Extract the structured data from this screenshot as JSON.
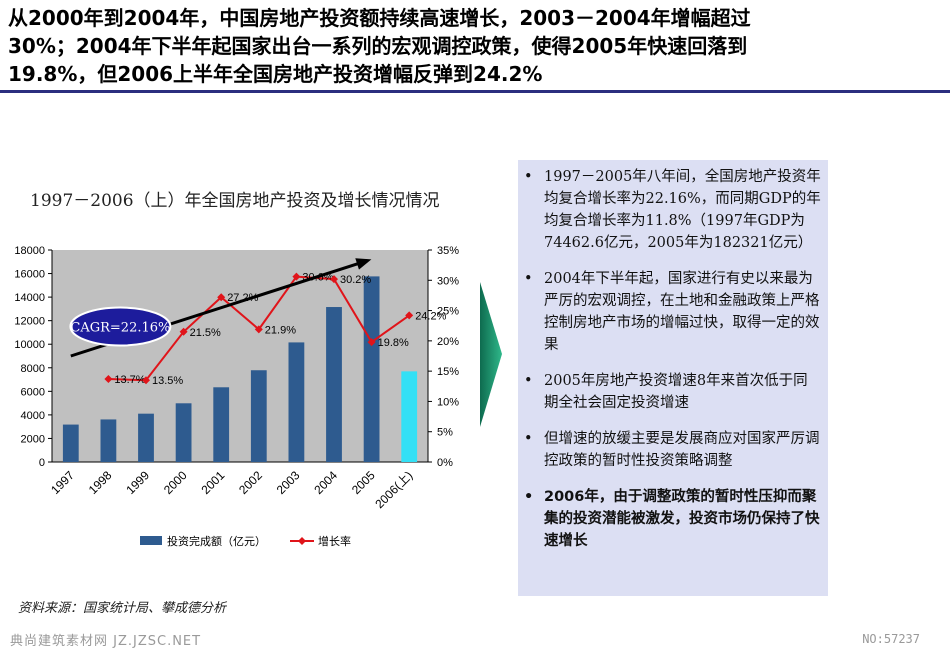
{
  "headline": {
    "lines": [
      "从2000年到2004年，中国房地产投资额持续高速增长，2003－2004年增幅超过",
      "30%；2004年下半年起国家出台一系列的宏观调控政策，使得2005年快速回落到",
      "19.8%，但2006上半年全国房地产投资增幅反弹到24.2%"
    ]
  },
  "chart_data": {
    "type": "bar",
    "title": "1997－2006（上）年全国房地产投资及增长情况情况",
    "categories": [
      "1997",
      "1998",
      "1999",
      "2000",
      "2001",
      "2002",
      "2003",
      "2004",
      "2005",
      "2006(上)"
    ],
    "series": [
      {
        "name": "投资完成额（亿元）",
        "type": "bar",
        "axis": "left",
        "color": "#2e5b8f",
        "highlight_color": "#33e0f5",
        "highlight_index": 9,
        "values": [
          3178,
          3614,
          4103,
          4984,
          6344,
          7791,
          10154,
          13158,
          15759,
          7695
        ]
      },
      {
        "name": "增长率",
        "type": "line",
        "axis": "right",
        "color": "#e0141a",
        "values": [
          null,
          13.7,
          13.5,
          21.5,
          27.2,
          21.9,
          30.6,
          30.2,
          19.8,
          24.2
        ],
        "labels": [
          "",
          "13.7%",
          "13.5%",
          "21.5%",
          "27.2%",
          "21.9%",
          "30.6%",
          "30.2%",
          "19.8%",
          "24.2%"
        ]
      }
    ],
    "y_left": {
      "min": 0,
      "max": 18000,
      "ticks": [
        "0",
        "2000",
        "4000",
        "6000",
        "8000",
        "10000",
        "12000",
        "14000",
        "16000",
        "18000"
      ]
    },
    "y_right": {
      "min": 0,
      "max": 35,
      "ticks": [
        "0%",
        "5%",
        "10%",
        "15%",
        "20%",
        "25%",
        "30%",
        "35%"
      ]
    },
    "annotation": "CAGR=22.16%",
    "trend_arrow": {
      "from": {
        "x": "1997",
        "y": 9000
      },
      "to": {
        "x": "2005",
        "y": 17100
      }
    },
    "plot_background": "#c0c0c0",
    "legend_position": "bottom"
  },
  "source": "资料来源：国家统计局、攀成德分析",
  "panel": {
    "bullets": [
      {
        "text": "1997－2005年八年间，全国房地产投资年均复合增长率为22.16%，而同期GDP的年均复合增长率为11.8%（1997年GDP为74462.6亿元，2005年为182321亿元）",
        "bold": false
      },
      {
        "text": "2004年下半年起，国家进行有史以来最为严厉的宏观调控，在土地和金融政策上严格控制房地产市场的增幅过快，取得一定的效果",
        "bold": false
      },
      {
        "text": "2005年房地产投资增速8年来首次低于同期全社会固定投资增速",
        "bold": false
      },
      {
        "text": "但增速的放缓主要是发展商应对国家严厉调控政策的暂时性投资策略调整",
        "bold": false
      },
      {
        "text": "2006年，由于调整政策的暂时性压抑而聚集的投资潜能被激发，投资市场仍保持了快速增长",
        "bold": true
      }
    ]
  },
  "watermark": {
    "left": "典尚建筑素材网 JZ.JZSC.NET",
    "right": "NO:57237"
  }
}
